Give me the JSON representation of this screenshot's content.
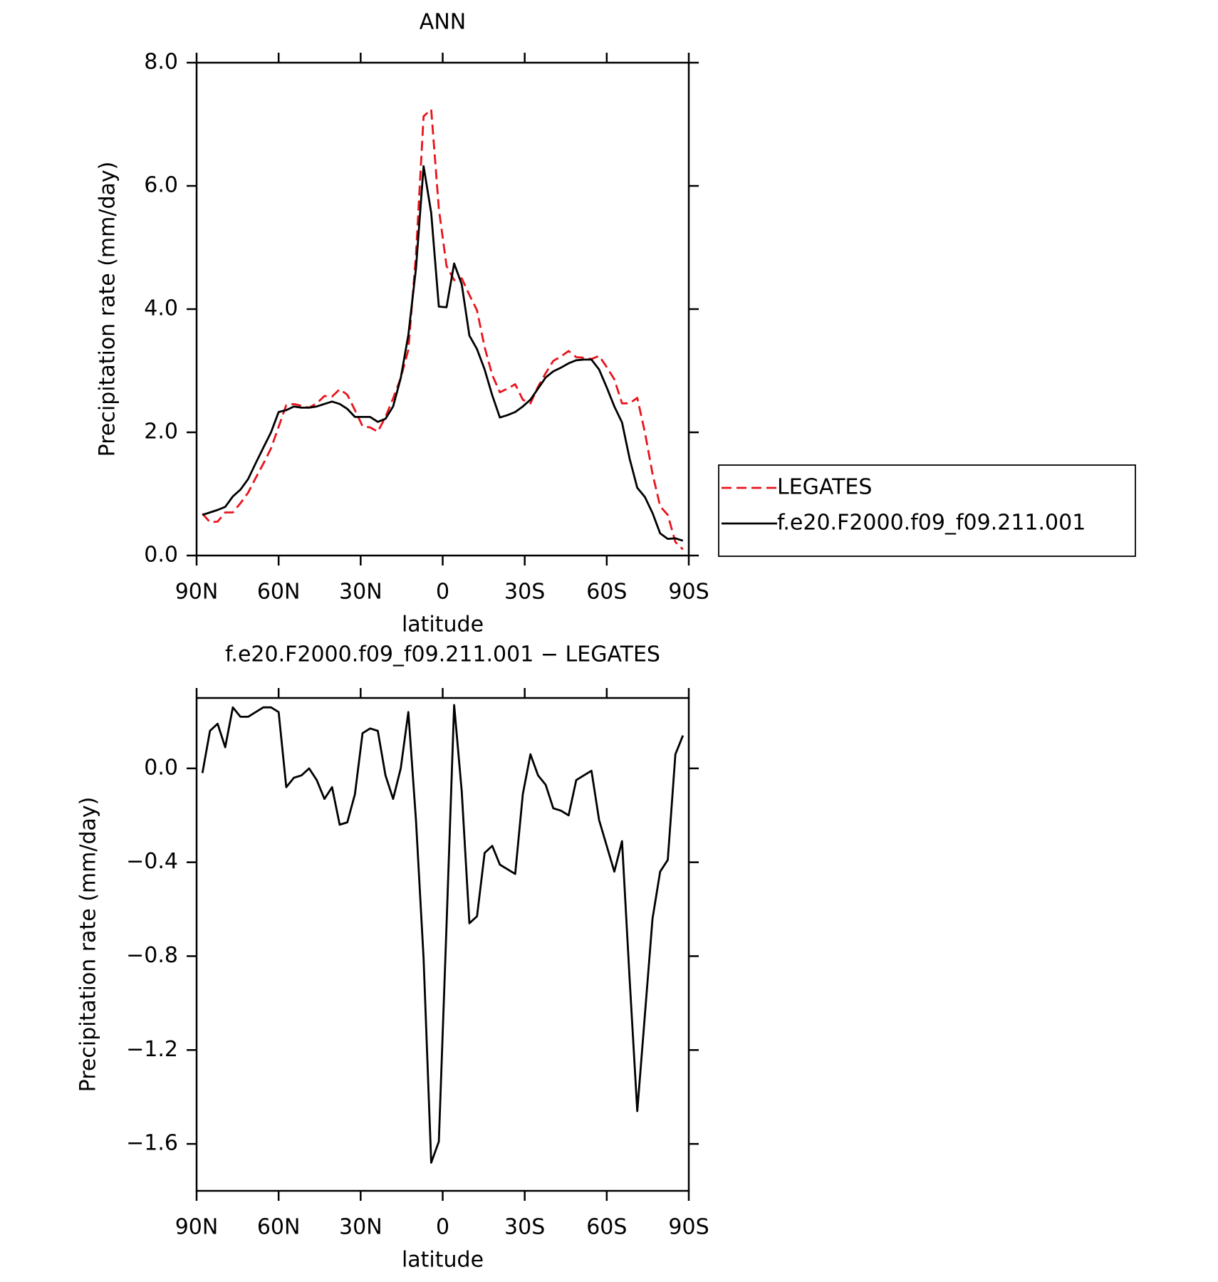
{
  "chart_data": [
    {
      "type": "line",
      "title": "ANN",
      "xlabel": "latitude",
      "ylabel": "Precipitation rate (mm/day)",
      "x": [
        87.86,
        85.1,
        82.31,
        79.53,
        76.74,
        73.95,
        71.16,
        68.37,
        65.58,
        62.79,
        60.0,
        57.21,
        54.42,
        51.63,
        48.84,
        46.05,
        43.25,
        40.46,
        37.67,
        34.88,
        32.09,
        29.3,
        26.51,
        23.72,
        20.93,
        18.14,
        15.35,
        12.56,
        9.77,
        6.98,
        4.19,
        1.4,
        -1.4,
        -4.19,
        -6.98,
        -9.77,
        -12.56,
        -15.35,
        -18.14,
        -20.93,
        -23.72,
        -26.51,
        -29.3,
        -32.09,
        -34.88,
        -37.67,
        -40.46,
        -43.25,
        -46.05,
        -48.84,
        -51.63,
        -54.42,
        -57.21,
        -60.0,
        -62.79,
        -65.58,
        -68.37,
        -71.16,
        -73.95,
        -76.74,
        -79.53,
        -82.31,
        -85.1,
        -87.86
      ],
      "series": [
        {
          "name": "LEGATES",
          "color": "#e8141c",
          "dash": true,
          "values": [
            0.68,
            0.54,
            0.55,
            0.7,
            0.7,
            0.85,
            1.02,
            1.26,
            1.49,
            1.74,
            2.09,
            2.44,
            2.46,
            2.43,
            2.4,
            2.47,
            2.59,
            2.58,
            2.7,
            2.61,
            2.36,
            2.1,
            2.08,
            2.01,
            2.25,
            2.55,
            2.88,
            3.34,
            4.88,
            7.13,
            7.24,
            5.63,
            4.7,
            4.47,
            4.5,
            4.23,
            3.98,
            3.38,
            2.93,
            2.65,
            2.71,
            2.78,
            2.53,
            2.47,
            2.74,
            2.96,
            3.16,
            3.23,
            3.32,
            3.22,
            3.21,
            3.19,
            3.24,
            3.06,
            2.86,
            2.47,
            2.47,
            2.56,
            2.0,
            1.33,
            0.8,
            0.66,
            0.22,
            0.1
          ]
        },
        {
          "name": "f.e20.F2000.f09_f09.211.001",
          "color": "#000000",
          "dash": false,
          "values": [
            0.66,
            0.7,
            0.74,
            0.79,
            0.96,
            1.07,
            1.24,
            1.5,
            1.75,
            2.0,
            2.33,
            2.36,
            2.42,
            2.4,
            2.4,
            2.42,
            2.46,
            2.5,
            2.46,
            2.38,
            2.25,
            2.25,
            2.25,
            2.17,
            2.22,
            2.42,
            2.88,
            3.58,
            4.66,
            6.32,
            5.56,
            4.04,
            4.03,
            4.74,
            4.4,
            3.57,
            3.35,
            3.02,
            2.6,
            2.24,
            2.28,
            2.33,
            2.42,
            2.53,
            2.71,
            2.89,
            2.99,
            3.05,
            3.12,
            3.17,
            3.18,
            3.18,
            3.02,
            2.73,
            2.42,
            2.16,
            1.57,
            1.1,
            0.95,
            0.69,
            0.36,
            0.27,
            0.28,
            0.24
          ]
        }
      ],
      "xlim": [
        90,
        -90
      ],
      "xticks": [
        {
          "value": 90,
          "label": "90N"
        },
        {
          "value": 60,
          "label": "60N"
        },
        {
          "value": 30,
          "label": "30N"
        },
        0,
        {
          "value": -30,
          "label": "30S"
        },
        {
          "value": -60,
          "label": "60S"
        },
        {
          "value": -90,
          "label": "90S"
        }
      ],
      "ylim": [
        0,
        8
      ],
      "yticks": [
        {
          "value": 0,
          "label": "0.0"
        },
        {
          "value": 2,
          "label": "2.0"
        },
        {
          "value": 4,
          "label": "4.0"
        },
        {
          "value": 6,
          "label": "6.0"
        },
        {
          "value": 8,
          "label": "8.0"
        }
      ],
      "legend": "right"
    },
    {
      "type": "line",
      "title": "f.e20.F2000.f09_f09.211.001 − LEGATES",
      "xlabel": "latitude",
      "ylabel": "Precipitation rate (mm/day)",
      "x": [
        87.86,
        85.1,
        82.31,
        79.53,
        76.74,
        73.95,
        71.16,
        68.37,
        65.58,
        62.79,
        60.0,
        57.21,
        54.42,
        51.63,
        48.84,
        46.05,
        43.25,
        40.46,
        37.67,
        34.88,
        32.09,
        29.3,
        26.51,
        23.72,
        20.93,
        18.14,
        15.35,
        12.56,
        9.77,
        6.98,
        4.19,
        1.4,
        -1.4,
        -4.19,
        -6.98,
        -9.77,
        -12.56,
        -15.35,
        -18.14,
        -20.93,
        -23.72,
        -26.51,
        -29.3,
        -32.09,
        -34.88,
        -37.67,
        -40.46,
        -43.25,
        -46.05,
        -48.84,
        -51.63,
        -54.42,
        -57.21,
        -60.0,
        -62.79,
        -65.58,
        -68.37,
        -71.16,
        -73.95,
        -76.74,
        -79.53,
        -82.31,
        -85.1,
        -87.86
      ],
      "series": [
        {
          "color": "#000000",
          "dash": false,
          "values": [
            -0.02,
            0.16,
            0.19,
            0.09,
            0.26,
            0.22,
            0.22,
            0.24,
            0.26,
            0.26,
            0.24,
            -0.08,
            -0.04,
            -0.03,
            0.0,
            -0.05,
            -0.13,
            -0.08,
            -0.24,
            -0.23,
            -0.11,
            0.15,
            0.17,
            0.16,
            -0.03,
            -0.13,
            0.0,
            0.24,
            -0.22,
            -0.81,
            -1.68,
            -1.59,
            -0.67,
            0.27,
            -0.1,
            -0.66,
            -0.63,
            -0.36,
            -0.33,
            -0.41,
            -0.43,
            -0.45,
            -0.11,
            0.06,
            -0.03,
            -0.07,
            -0.17,
            -0.18,
            -0.2,
            -0.05,
            -0.03,
            -0.01,
            -0.22,
            -0.33,
            -0.44,
            -0.31,
            -0.9,
            -1.46,
            -1.05,
            -0.64,
            -0.44,
            -0.39,
            0.06,
            0.14
          ]
        }
      ],
      "xlim": [
        90,
        -90
      ],
      "xticks": [
        {
          "value": 90,
          "label": "90N"
        },
        {
          "value": 60,
          "label": "60N"
        },
        {
          "value": 30,
          "label": "30N"
        },
        0,
        {
          "value": -30,
          "label": "30S"
        },
        {
          "value": -60,
          "label": "60S"
        },
        {
          "value": -90,
          "label": "90S"
        }
      ],
      "ylim": [
        -1.8,
        0.3
      ],
      "yticks": [
        {
          "value": 0,
          "label": "0.0"
        },
        {
          "value": -0.4,
          "label": "−0.4"
        },
        {
          "value": -0.8,
          "label": "−0.8"
        },
        {
          "value": -1.2,
          "label": "−1.2"
        },
        {
          "value": -1.6,
          "label": "−1.6"
        }
      ]
    }
  ]
}
